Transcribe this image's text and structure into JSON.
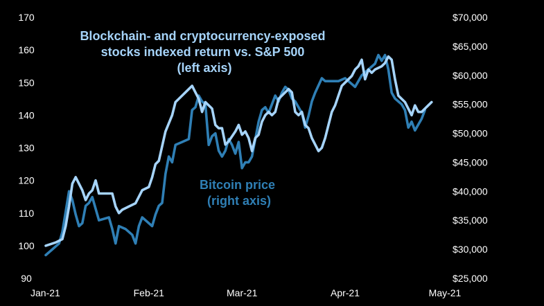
{
  "chart_data": {
    "type": "line",
    "title": "Blockchain- and cryptocurrency-exposed stocks indexed return vs. S&P 500",
    "annotations": {
      "index_label": [
        "Blockchain- and cryptocurrency-exposed",
        "stocks indexed return vs. S&P 500",
        "(left axis)"
      ],
      "btc_label": [
        "Bitcoin price",
        "(right axis)"
      ]
    },
    "x_ticks": [
      {
        "label": "Jan-21",
        "day": 0
      },
      {
        "label": "Feb-21",
        "day": 31
      },
      {
        "label": "Mar-21",
        "day": 59
      },
      {
        "label": "Apr-21",
        "day": 90
      },
      {
        "label": "May-21",
        "day": 120
      }
    ],
    "x_range": [
      0,
      120
    ],
    "y_left": {
      "min": 90,
      "max": 170,
      "ticks": [
        "90",
        "100",
        "110",
        "120",
        "130",
        "140",
        "150",
        "160",
        "170"
      ]
    },
    "y_right": {
      "min": 25000,
      "max": 70000,
      "ticks": [
        "$25,000",
        "$30,000",
        "$35,000",
        "$40,000",
        "$45,000",
        "$50,000",
        "$55,000",
        "$60,000",
        "$65,000",
        "$70,000"
      ]
    },
    "colors": {
      "index": "#a6d4fa",
      "btc": "#2f7fb5",
      "text": "#ffffff",
      "index_label": "#a6d4fa",
      "btc_label": "#2f7fb5"
    },
    "series": [
      {
        "name": "Blockchain- and cryptocurrency-exposed stocks indexed return vs. S&P 500 (left axis)",
        "axis": "left",
        "points": [
          [
            0,
            100
          ],
          [
            3,
            101
          ],
          [
            5,
            102
          ],
          [
            6,
            106
          ],
          [
            7,
            112
          ],
          [
            8,
            119
          ],
          [
            9,
            121
          ],
          [
            11,
            117
          ],
          [
            12,
            114
          ],
          [
            13,
            116
          ],
          [
            14,
            117
          ],
          [
            15,
            120
          ],
          [
            16,
            116
          ],
          [
            19,
            116
          ],
          [
            20,
            116
          ],
          [
            21,
            112
          ],
          [
            22,
            110
          ],
          [
            23,
            111
          ],
          [
            25,
            112
          ],
          [
            27,
            113
          ],
          [
            28,
            115
          ],
          [
            29,
            117
          ],
          [
            31,
            118
          ],
          [
            32,
            121
          ],
          [
            33,
            125
          ],
          [
            34,
            126
          ],
          [
            36,
            135
          ],
          [
            38,
            140
          ],
          [
            39,
            144
          ],
          [
            41,
            146
          ],
          [
            43,
            148
          ],
          [
            44,
            149
          ],
          [
            45,
            147
          ],
          [
            46,
            145
          ],
          [
            47,
            141
          ],
          [
            48,
            144
          ],
          [
            50,
            142
          ],
          [
            51,
            137
          ],
          [
            52,
            136
          ],
          [
            53,
            136
          ],
          [
            54,
            131
          ],
          [
            55,
            132
          ],
          [
            57,
            135
          ],
          [
            58,
            137
          ],
          [
            59,
            134
          ],
          [
            60,
            135
          ],
          [
            61,
            133
          ],
          [
            62,
            129
          ],
          [
            63,
            133
          ],
          [
            64,
            134
          ],
          [
            65,
            138
          ],
          [
            66,
            140
          ],
          [
            67,
            141
          ],
          [
            68,
            140
          ],
          [
            69,
            141
          ],
          [
            70,
            145
          ],
          [
            71,
            146
          ],
          [
            72,
            147
          ],
          [
            73,
            148
          ],
          [
            74,
            147
          ],
          [
            75,
            141
          ],
          [
            76,
            140
          ],
          [
            77,
            141
          ],
          [
            78,
            137
          ],
          [
            79,
            136
          ],
          [
            80,
            133
          ],
          [
            81,
            131
          ],
          [
            82,
            129
          ],
          [
            83,
            130
          ],
          [
            84,
            133
          ],
          [
            85,
            137
          ],
          [
            86,
            141
          ],
          [
            87,
            143
          ],
          [
            88,
            146
          ],
          [
            89,
            149
          ],
          [
            90,
            150
          ],
          [
            92,
            152
          ],
          [
            93,
            154
          ],
          [
            94,
            155
          ],
          [
            95,
            157
          ],
          [
            96,
            151
          ],
          [
            97,
            154
          ],
          [
            98,
            153
          ],
          [
            99,
            154
          ],
          [
            101,
            155
          ],
          [
            102,
            156
          ],
          [
            103,
            158
          ],
          [
            104,
            157
          ],
          [
            105,
            151
          ],
          [
            106,
            146
          ],
          [
            107,
            145
          ],
          [
            108,
            144
          ],
          [
            109,
            142
          ],
          [
            110,
            140
          ],
          [
            111,
            143
          ],
          [
            112,
            141
          ],
          [
            113,
            141
          ],
          [
            114,
            142
          ],
          [
            115,
            143
          ],
          [
            116,
            144
          ]
        ]
      },
      {
        "name": "Bitcoin price (right axis)",
        "axis": "right",
        "points": [
          [
            0,
            29000
          ],
          [
            2,
            30000
          ],
          [
            3,
            30500
          ],
          [
            4,
            31000
          ],
          [
            5,
            33000
          ],
          [
            6,
            36500
          ],
          [
            7,
            40000
          ],
          [
            8,
            38500
          ],
          [
            9,
            36000
          ],
          [
            10,
            34000
          ],
          [
            11,
            34500
          ],
          [
            12,
            37500
          ],
          [
            13,
            38000
          ],
          [
            14,
            39000
          ],
          [
            15,
            37000
          ],
          [
            16,
            35000
          ],
          [
            19,
            35500
          ],
          [
            20,
            33500
          ],
          [
            21,
            31000
          ],
          [
            22,
            34000
          ],
          [
            24,
            33500
          ],
          [
            26,
            32500
          ],
          [
            27,
            31000
          ],
          [
            28,
            34000
          ],
          [
            29,
            35500
          ],
          [
            30,
            35000
          ],
          [
            32,
            34000
          ],
          [
            33,
            36000
          ],
          [
            34,
            37500
          ],
          [
            35,
            38000
          ],
          [
            36,
            43000
          ],
          [
            37,
            46000
          ],
          [
            38,
            45000
          ],
          [
            39,
            48000
          ],
          [
            41,
            48500
          ],
          [
            43,
            49000
          ],
          [
            44,
            54000
          ],
          [
            45,
            54500
          ],
          [
            46,
            56500
          ],
          [
            47,
            55500
          ],
          [
            48,
            55000
          ],
          [
            49,
            48000
          ],
          [
            50,
            49500
          ],
          [
            51,
            50000
          ],
          [
            52,
            47000
          ],
          [
            53,
            46000
          ],
          [
            54,
            47000
          ],
          [
            55,
            49000
          ],
          [
            56,
            48000
          ],
          [
            57,
            46500
          ],
          [
            58,
            48500
          ],
          [
            59,
            44000
          ],
          [
            60,
            45000
          ],
          [
            61,
            45000
          ],
          [
            62,
            46000
          ],
          [
            63,
            49000
          ],
          [
            64,
            52000
          ],
          [
            65,
            54000
          ],
          [
            66,
            54500
          ],
          [
            67,
            53500
          ],
          [
            68,
            55000
          ],
          [
            69,
            56500
          ],
          [
            70,
            55500
          ],
          [
            71,
            57000
          ],
          [
            72,
            58000
          ],
          [
            73,
            57500
          ],
          [
            74,
            56000
          ],
          [
            75,
            55500
          ],
          [
            76,
            54500
          ],
          [
            77,
            53500
          ],
          [
            78,
            51000
          ],
          [
            79,
            53000
          ],
          [
            80,
            55500
          ],
          [
            81,
            57000
          ],
          [
            83,
            59500
          ],
          [
            84,
            59000
          ],
          [
            86,
            59000
          ],
          [
            88,
            59000
          ],
          [
            90,
            59500
          ],
          [
            92,
            58500
          ],
          [
            93,
            58000
          ],
          [
            95,
            60000
          ],
          [
            97,
            61000
          ],
          [
            99,
            62000
          ],
          [
            100,
            63500
          ],
          [
            101,
            62500
          ],
          [
            102,
            63500
          ],
          [
            103,
            61000
          ],
          [
            104,
            57000
          ],
          [
            105,
            56000
          ],
          [
            106,
            55500
          ],
          [
            107,
            55000
          ],
          [
            108,
            54000
          ],
          [
            109,
            51000
          ],
          [
            110,
            52000
          ],
          [
            111,
            50500
          ],
          [
            112,
            51500
          ],
          [
            113,
            52500
          ],
          [
            114,
            54000
          ]
        ]
      }
    ]
  }
}
